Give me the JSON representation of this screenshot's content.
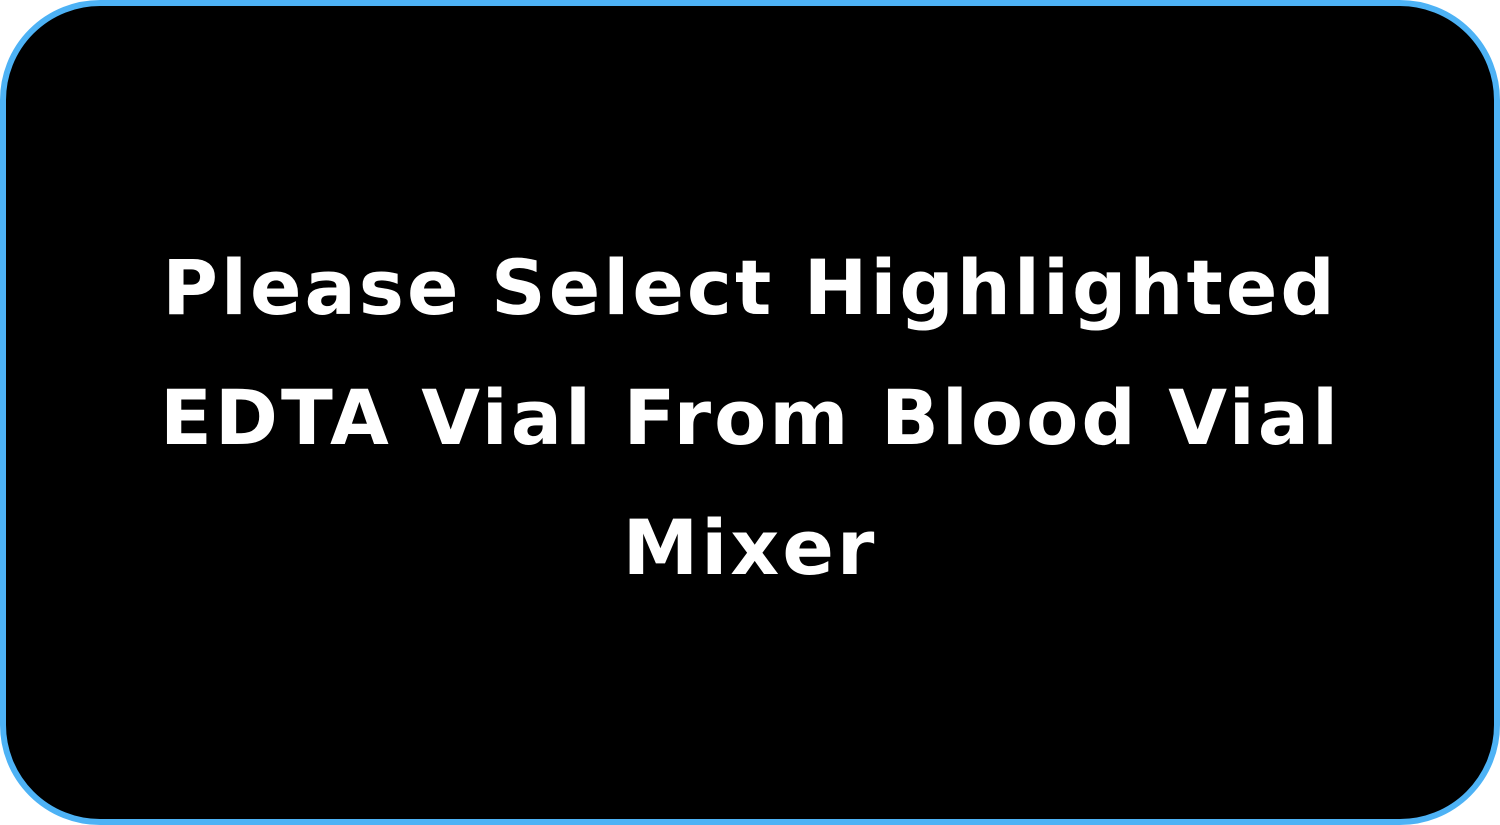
{
  "dialog": {
    "message_lines": [
      "Please Select Highlighted",
      "EDTA Vial From Blood Vial",
      "Mixer"
    ],
    "colors": {
      "background": "#000000",
      "border": "#4db2f5",
      "text": "#ffffff"
    }
  }
}
